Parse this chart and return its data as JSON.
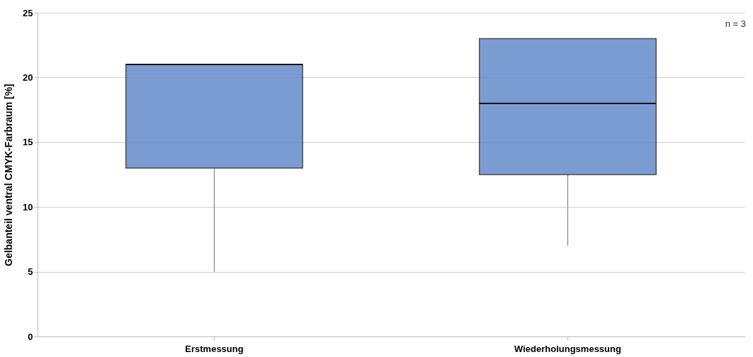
{
  "chart_data": {
    "type": "box",
    "ylabel": "Gelbanteil ventral CMYK-Farbraum [%]",
    "categories": [
      "Erstmessung",
      "Wiederholungsmessung"
    ],
    "boxes": [
      {
        "low": 5,
        "q1": 13,
        "median": 21,
        "q3": 21,
        "high": 21
      },
      {
        "low": 7,
        "q1": 12.5,
        "median": 18,
        "q3": 23,
        "high": 23
      }
    ],
    "color": "#5b84c9",
    "ylim": [
      0,
      25
    ],
    "yticks": [
      0,
      5,
      10,
      15,
      20,
      25
    ],
    "grid": "y",
    "annotations": [
      "n = 3"
    ]
  }
}
